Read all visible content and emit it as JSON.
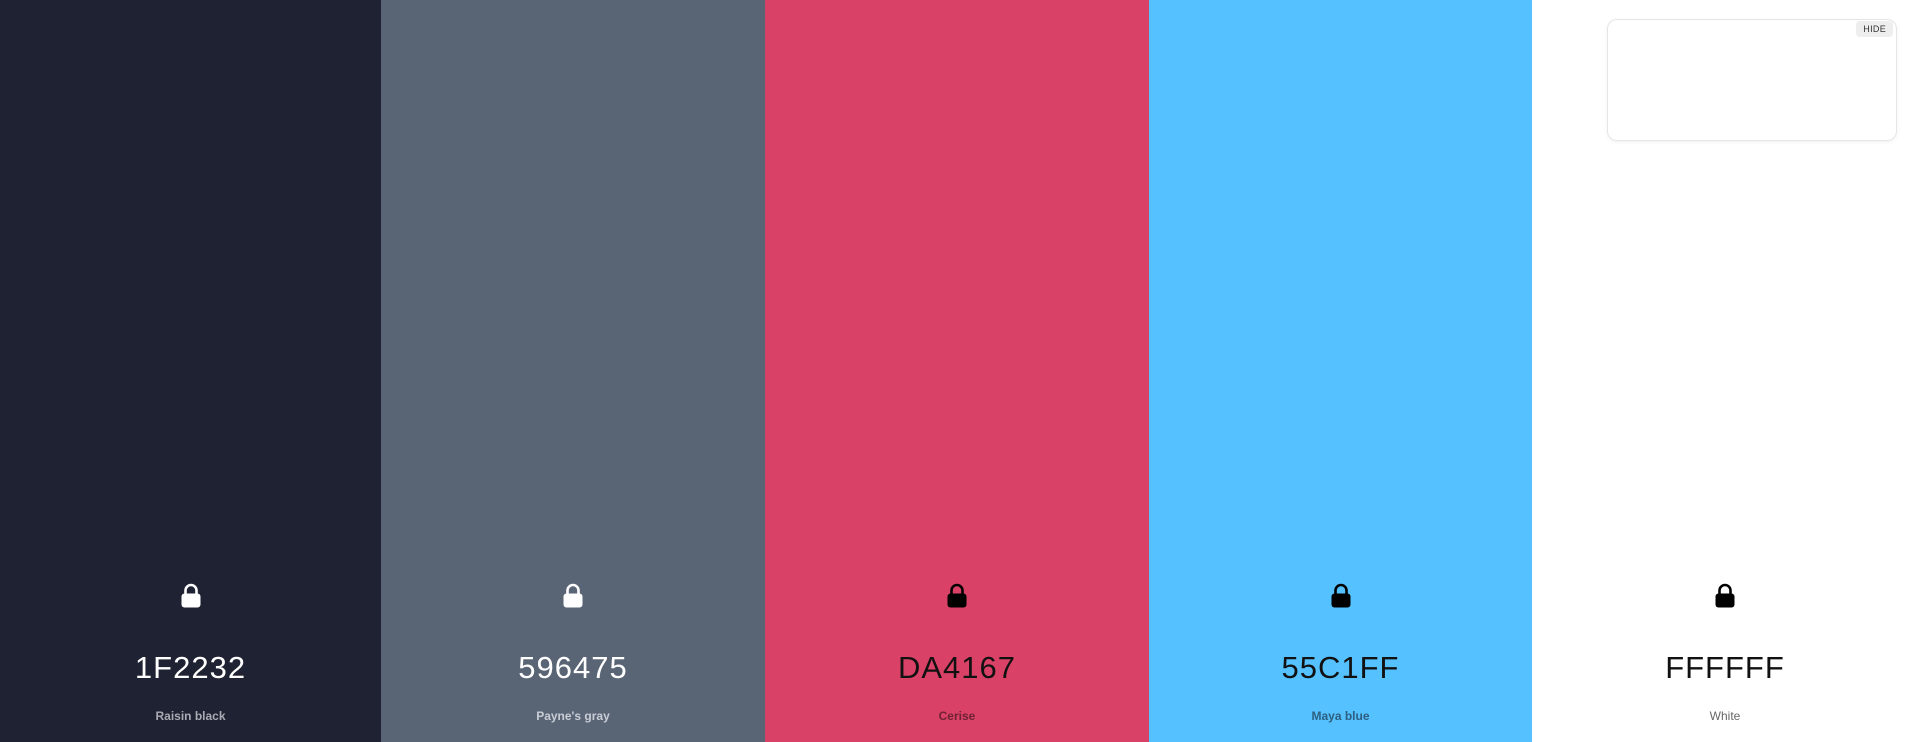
{
  "palette": [
    {
      "hex": "1F2232",
      "name": "Raisin black",
      "bg": "#1F2232",
      "text_color": "#ffffff",
      "name_color": "#a9abb3",
      "lock_color": "#ffffff",
      "icon": "lock-icon"
    },
    {
      "hex": "596475",
      "name": "Payne's gray",
      "bg": "#596475",
      "text_color": "#ffffff",
      "name_color": "#c9ced6",
      "lock_color": "#ffffff",
      "icon": "lock-icon"
    },
    {
      "hex": "DA4167",
      "name": "Cerise",
      "bg": "#DA4167",
      "text_color": "#111111",
      "name_color": "#6e2234",
      "lock_color": "#000000",
      "icon": "lock-icon"
    },
    {
      "hex": "55C1FF",
      "name": "Maya blue",
      "bg": "#55C1FF",
      "text_color": "#111111",
      "name_color": "#2d5f80",
      "lock_color": "#000000",
      "icon": "lock-icon"
    },
    {
      "hex": "FFFFFF",
      "name": "White",
      "bg": "#FFFFFF",
      "text_color": "#111111",
      "name_color": "#666666",
      "lock_color": "#000000",
      "icon": "lock-icon"
    }
  ],
  "preview": {
    "hide_label": "HIDE"
  }
}
